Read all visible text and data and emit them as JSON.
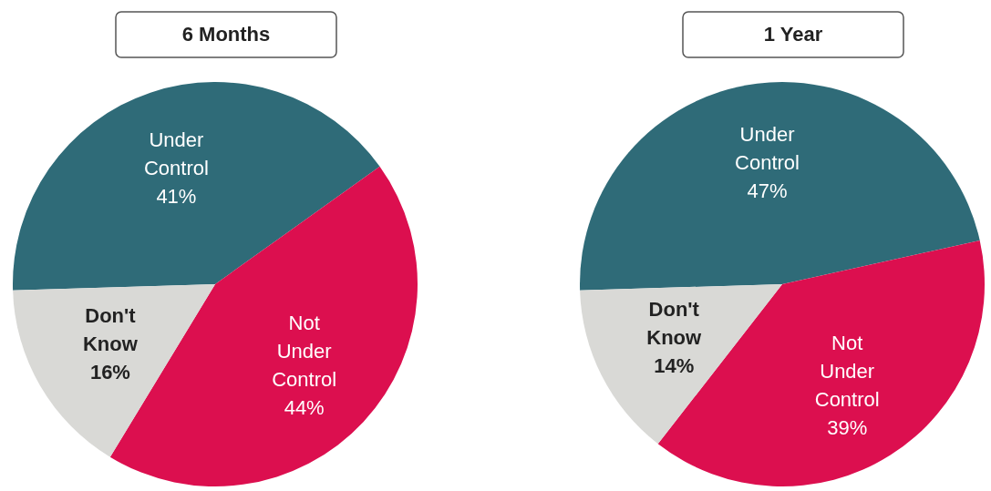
{
  "chart_data": [
    {
      "type": "pie",
      "title": "6 Months",
      "categories": [
        "Under Control",
        "Not Under Control",
        "Don't Know"
      ],
      "values": [
        41,
        44,
        16
      ],
      "value_labels": [
        "41%",
        "44%",
        "16%"
      ],
      "colors": [
        "#2f6b78",
        "#dc0f4f",
        "#d9d9d6"
      ]
    },
    {
      "type": "pie",
      "title": "1 Year",
      "categories": [
        "Under Control",
        "Not Under Control",
        "Don't Know"
      ],
      "values": [
        47,
        39,
        14
      ],
      "value_labels": [
        "47%",
        "39%",
        "14%"
      ],
      "colors": [
        "#2f6b78",
        "#dc0f4f",
        "#d9d9d6"
      ]
    }
  ]
}
